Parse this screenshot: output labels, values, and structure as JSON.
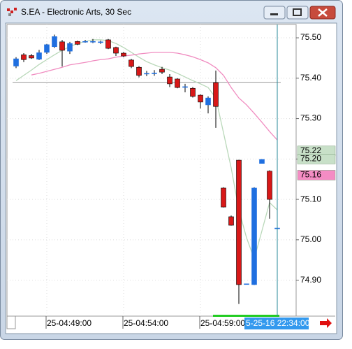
{
  "window_title": "S.EA - Electronic Arts, 30 Sec",
  "chart_data": {
    "type": "candlestick",
    "categories": [
      null,
      null,
      null,
      null,
      "25-04:49:00",
      null,
      null,
      null,
      null,
      null,
      null,
      null,
      null,
      null,
      "25-04:54:00",
      null,
      null,
      null,
      null,
      null,
      null,
      null,
      null,
      null,
      "25-04:59:00",
      null,
      null,
      null,
      null,
      null,
      null,
      null,
      null,
      null,
      null
    ],
    "open": [
      75.43,
      75.458,
      75.456,
      75.447,
      75.464,
      75.478,
      75.49,
      75.467,
      75.491,
      75.491,
      75.491,
      75.49,
      75.495,
      75.476,
      75.462,
      75.445,
      75.427,
      75.412,
      75.413,
      75.422,
      75.403,
      75.398,
      75.379,
      75.375,
      75.358,
      75.334,
      75.389,
      75.128,
      75.057,
      75.197,
      74.891,
      74.889,
      75.189,
      75.17,
      75.029
    ],
    "high": [
      75.452,
      75.462,
      75.46,
      75.47,
      75.485,
      75.508,
      75.495,
      75.49,
      75.493,
      75.495,
      75.497,
      75.493,
      75.497,
      75.478,
      75.465,
      75.448,
      75.43,
      75.418,
      75.42,
      75.428,
      75.41,
      75.4,
      75.386,
      75.378,
      75.36,
      75.355,
      75.419,
      75.13,
      75.06,
      75.198,
      74.891,
      75.13,
      75.199,
      75.172,
      75.029
    ],
    "low": [
      75.425,
      75.44,
      75.448,
      75.445,
      75.46,
      75.475,
      75.429,
      75.46,
      75.482,
      75.488,
      75.487,
      75.485,
      75.472,
      75.455,
      75.452,
      75.425,
      75.402,
      75.405,
      75.406,
      75.41,
      75.378,
      75.375,
      75.365,
      75.352,
      75.325,
      75.313,
      75.277,
      75.08,
      75.035,
      74.841,
      74.891,
      74.888,
      75.189,
      75.052,
      75.029
    ],
    "close": [
      75.448,
      75.446,
      75.45,
      75.463,
      75.483,
      75.503,
      75.469,
      75.486,
      75.484,
      75.491,
      75.491,
      75.49,
      75.474,
      75.462,
      75.455,
      75.429,
      75.407,
      75.412,
      75.413,
      75.415,
      75.386,
      75.377,
      75.379,
      75.355,
      75.341,
      75.351,
      75.33,
      75.081,
      75.036,
      74.889,
      74.891,
      75.128,
      75.199,
      75.1,
      75.029
    ],
    "up_color": "#1f6fe0",
    "down_color": "#d81818",
    "series": [
      {
        "type": "line",
        "color": "#b9d8b9",
        "values": [
          75.394,
          75.407,
          75.42,
          75.434,
          75.446,
          75.458,
          75.469,
          75.478,
          75.486,
          75.491,
          75.495,
          75.495,
          75.493,
          75.486,
          75.476,
          75.464,
          75.452,
          75.441,
          75.433,
          75.426,
          75.42,
          75.412,
          75.403,
          75.394,
          75.386,
          75.377,
          75.351,
          75.265,
          75.178,
          75.074,
          75.005,
          74.953,
          75.022,
          75.092,
          75.074
        ]
      },
      {
        "type": "line",
        "color": "#f08cc0",
        "values": [
          null,
          null,
          75.408,
          75.412,
          75.417,
          75.422,
          75.427,
          75.433,
          75.436,
          75.439,
          75.443,
          75.446,
          75.448,
          75.452,
          75.455,
          75.457,
          75.46,
          75.462,
          75.464,
          75.464,
          75.464,
          75.462,
          75.458,
          75.453,
          75.446,
          75.438,
          75.426,
          75.407,
          75.377,
          75.351,
          75.334,
          75.313,
          75.291,
          75.268,
          75.247
        ]
      }
    ],
    "hline": 75.39,
    "price_labels": [
      {
        "value": 75.22,
        "label": "75.22",
        "color": "#c8e0c8"
      },
      {
        "value": 75.2,
        "label": "75.20",
        "color": "#c8e0c8"
      },
      {
        "value": 75.16,
        "label": "75.16",
        "color": "#f48cc4"
      }
    ],
    "cursor_index": 34,
    "cursor_label": "5-25-16 22:34:00",
    "ylim": [
      74.811,
      75.533
    ],
    "yticks": [
      {
        "value": 74.9,
        "label": "74.90"
      },
      {
        "value": 75.0,
        "label": "75.00"
      },
      {
        "value": 75.1,
        "label": "75.10"
      },
      {
        "value": 75.2,
        "label": "75.20"
      },
      {
        "value": 75.3,
        "label": "75.30"
      },
      {
        "value": 75.4,
        "label": "75.40"
      },
      {
        "value": 75.5,
        "label": "75.50"
      }
    ],
    "grid": true
  }
}
